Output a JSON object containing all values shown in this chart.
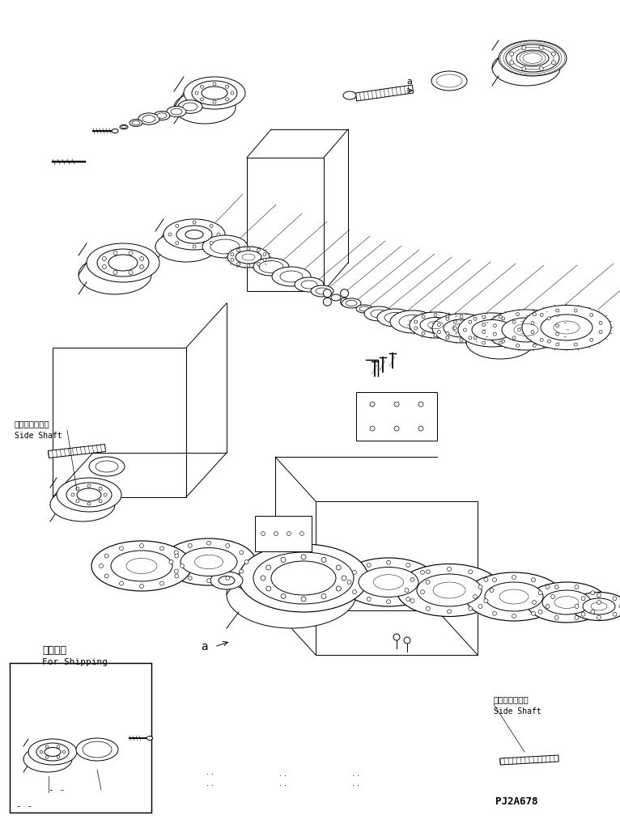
{
  "background_color": "#ffffff",
  "fig_width": 7.66,
  "fig_height": 10.13,
  "dpi": 100,
  "labels": {
    "side_shaft_jp_left": "サイドシャフト",
    "side_shaft_en_left": "Side Shaft",
    "side_shaft_jp_right": "サイドシャフト",
    "side_shaft_en_right": "Side Shaft",
    "shipping_jp": "運搜部品",
    "shipping_en": "For Shipping",
    "part_num": "PJ2A678",
    "label_a_top": "a",
    "label_a_bottom": "a"
  },
  "line_color": "#000000",
  "line_width": 0.7
}
